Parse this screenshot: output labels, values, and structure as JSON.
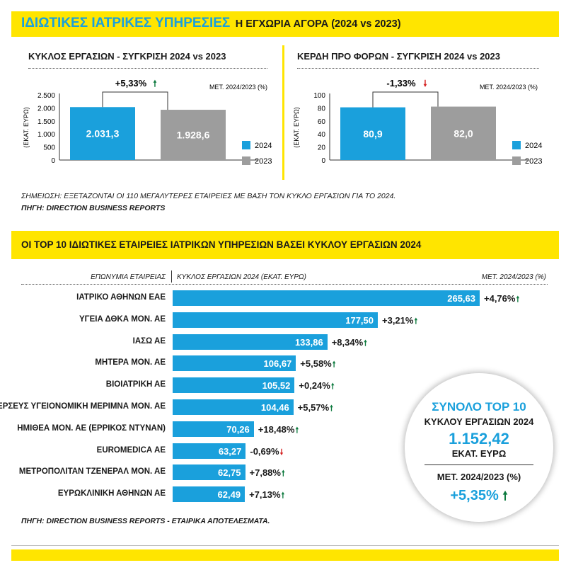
{
  "header": {
    "title": "ΙΔΙΩΤΙΚΕΣ ΙΑΤΡΙΚΕΣ ΥΠΗΡΕΣΙΕΣ",
    "subtitle": "Η ΕΓΧΩΡΙΑ ΑΓΟΡΑ (2024 vs 2023)"
  },
  "colors": {
    "accent": "#ffe500",
    "blue": "#1aa0dc",
    "gray": "#9d9d9d",
    "up": "#0d7a3e",
    "down": "#d42020"
  },
  "chart_data": [
    {
      "type": "bar",
      "title": "ΚΥΚΛΟΣ ΕΡΓΑΣΙΩΝ - ΣΥΓΚΡΙΣΗ 2024 vs 2023",
      "ylabel": "(ΕΚΑΤ. ΕΥΡΩ)",
      "change_label": "ΜΕΤ. 2024/2023 (%)",
      "categories": [
        "2024",
        "2023"
      ],
      "values": [
        2031.3,
        1928.6
      ],
      "value_labels": [
        "2.031,3",
        "1.928,6"
      ],
      "ylim": [
        0,
        2500
      ],
      "yticks": [
        0,
        500,
        1000,
        1500,
        2000,
        2500
      ],
      "ytick_labels": [
        "0",
        "500",
        "1.000",
        "1.500",
        "2.000",
        "2.500"
      ],
      "change": "+5,33%",
      "change_dir": "up",
      "legend": [
        "2024",
        "2023"
      ]
    },
    {
      "type": "bar",
      "title": "ΚΕΡΔΗ ΠΡΟ ΦΟΡΩΝ - ΣΥΓΚΡΙΣΗ 2024 vs 2023",
      "ylabel": "(ΕΚΑΤ. ΕΥΡΩ)",
      "change_label": "ΜΕΤ. 2024/2023 (%)",
      "categories": [
        "2024",
        "2023"
      ],
      "values": [
        80.9,
        82.0
      ],
      "value_labels": [
        "80,9",
        "82,0"
      ],
      "ylim": [
        0,
        100
      ],
      "yticks": [
        0,
        20,
        40,
        60,
        80,
        100
      ],
      "ytick_labels": [
        "0",
        "20",
        "40",
        "60",
        "80",
        "100"
      ],
      "change": "-1,33%",
      "change_dir": "down",
      "legend": [
        "2024",
        "2023"
      ]
    },
    {
      "type": "bar",
      "orientation": "horizontal",
      "title": "ΟΙ TOP 10 ΙΔΙΩΤΙΚΕΣ ΕΤΑΙΡΕΙΕΣ ΙΑΤΡΙΚΩΝ ΥΠΗΡΕΣΙΩΝ ΒΑΣΕΙ ΚΥΚΛΟΥ ΕΡΓΑΣΙΩΝ 2024",
      "col_headers": [
        "ΕΠΩΝΥΜΙΑ ΕΤΑΙΡΕΙΑΣ",
        "ΚΥΚΛΟΣ ΕΡΓΑΣΙΩΝ 2024 (ΕΚΑΤ. ΕΥΡΩ)",
        "ΜΕΤ. 2024/2023 (%)"
      ],
      "xlim": [
        0,
        265.63
      ],
      "rows": [
        {
          "name": "ΙΑΤΡΙΚΟ ΑΘΗΝΩΝ ΕΑΕ",
          "value": 265.63,
          "label": "265,63",
          "change": "+4,76%",
          "dir": "up"
        },
        {
          "name": "ΥΓΕΙΑ ΔΘΚΑ ΜΟΝ. ΑΕ",
          "value": 177.5,
          "label": "177,50",
          "change": "+3,21%",
          "dir": "up"
        },
        {
          "name": "ΙΑΣΩ ΑΕ",
          "value": 133.86,
          "label": "133,86",
          "change": "+8,34%",
          "dir": "up"
        },
        {
          "name": "ΜΗΤΕΡΑ ΜΟΝ. ΑΕ",
          "value": 106.67,
          "label": "106,67",
          "change": "+5,58%",
          "dir": "up"
        },
        {
          "name": "ΒΙΟΙΑΤΡΙΚΗ ΑΕ",
          "value": 105.52,
          "label": "105,52",
          "change": "+0,24%",
          "dir": "up"
        },
        {
          "name": "ΠΕΡΣΕΥΣ ΥΓΕΙΟΝΟΜΙΚΗ ΜΕΡΙΜΝΑ ΜΟΝ. ΑΕ",
          "value": 104.46,
          "label": "104,46",
          "change": "+5,57%",
          "dir": "up"
        },
        {
          "name": "ΗΜΙΘΕΑ ΜΟΝ. ΑΕ (ΕΡΡΙΚΟΣ ΝΤΥΝΑΝ)",
          "value": 70.26,
          "label": "70,26",
          "change": "+18,48%",
          "dir": "up"
        },
        {
          "name": "EUROMEDICA ΑΕ",
          "value": 63.27,
          "label": "63,27",
          "change": "-0,69%",
          "dir": "down"
        },
        {
          "name": "ΜΕΤΡΟΠΟΛΙΤΑΝ ΤΖΕΝΕΡΑΛ ΜΟΝ. ΑΕ",
          "value": 62.75,
          "label": "62,75",
          "change": "+7,88%",
          "dir": "up"
        },
        {
          "name": "ΕΥΡΩΚΛΙΝΙΚΗ ΑΘΗΝΩΝ ΑΕ",
          "value": 62.49,
          "label": "62,49",
          "change": "+7,13%",
          "dir": "up"
        }
      ]
    }
  ],
  "notes": {
    "note1": "ΣΗΜΕΙΩΣΗ: ΕΞΕΤΑΖΟΝΤΑΙ ΟΙ 110 ΜΕΓΑΛΥΤΕΡΕΣ ΕΤΑΙΡΕΙΕΣ ΜΕ ΒΑΣΗ ΤΟΝ ΚΥΚΛΟ ΕΡΓΑΣΙΩΝ ΓΙΑ ΤΟ 2024.",
    "source1": "ΠΗΓΗ: DIRECTION BUSINESS REPORTS",
    "source2": "ΠΗΓΗ: DIRECTION BUSINESS REPORTS - ΕΤΑΙΡΙΚΑ ΑΠΟΤΕΛΕΣΜΑΤΑ."
  },
  "total": {
    "title": "ΣΥΝΟΛΟ TOP 10",
    "subtitle": "ΚΥΚΛΟΥ ΕΡΓΑΣΙΩΝ 2024",
    "value": "1.152,42",
    "unit": "ΕΚΑΤ. ΕΥΡΩ",
    "change_label": "ΜΕΤ. 2024/2023 (%)",
    "change": "+5,35%"
  }
}
